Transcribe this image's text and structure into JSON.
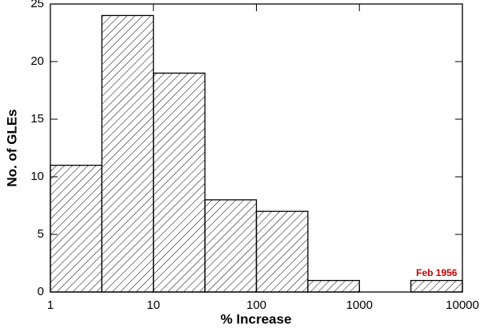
{
  "chart_data": {
    "type": "histogram",
    "xlabel": "% Increase",
    "ylabel": "No. of GLEs",
    "bins": [
      1,
      3.162,
      10,
      31.62,
      100,
      316.2,
      1000,
      3162,
      10000
    ],
    "counts": [
      11,
      24,
      19,
      8,
      7,
      1,
      0,
      1
    ],
    "xscale": "log",
    "xlim": [
      1,
      10000
    ],
    "xticks": [
      1,
      10,
      100,
      1000,
      10000
    ],
    "ylim": [
      0,
      25
    ],
    "yticks": [
      0,
      5,
      10,
      15,
      20,
      25
    ],
    "hatch": "diagonal",
    "color": "#000000",
    "annotations": [
      {
        "text": "Feb 1956",
        "color": "#cc0000"
      }
    ]
  }
}
